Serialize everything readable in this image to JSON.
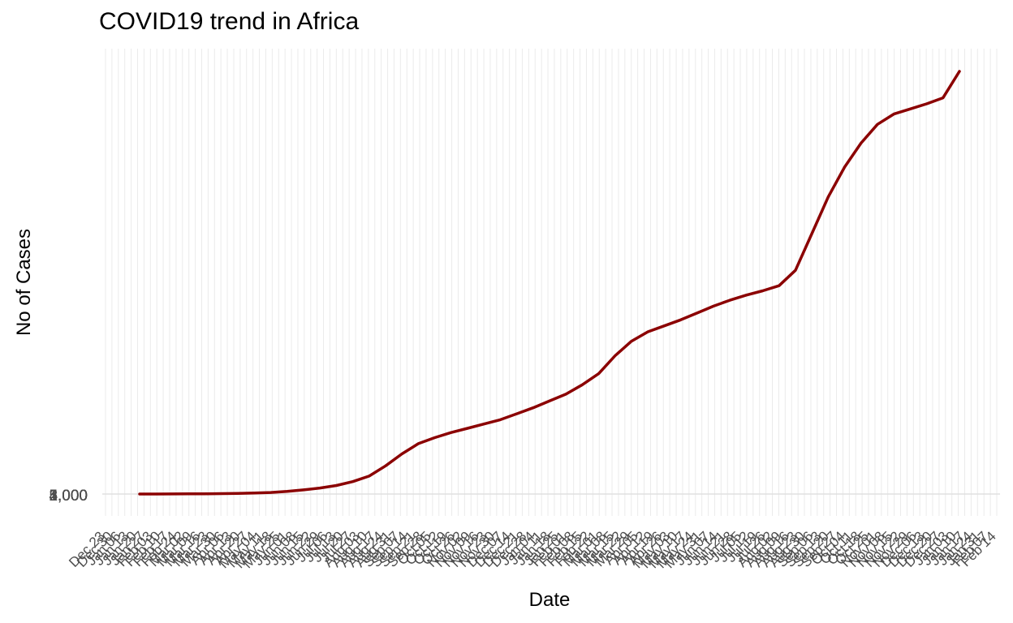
{
  "chart_data": {
    "type": "line",
    "title": "COVID19 trend in Africa",
    "xlabel": "Date",
    "ylabel": "No of Cases",
    "y_tick_labels": [
      "1,000",
      "2,000",
      "3,000",
      "4,000",
      "5,000"
    ],
    "series": [
      {
        "name": "No of Cases",
        "color": "#8b0000",
        "values": [
          0,
          0,
          1,
          2,
          3,
          5,
          8,
          12,
          18,
          30,
          48,
          70,
          100,
          145,
          210,
          330,
          470,
          590,
          660,
          720,
          770,
          820,
          870,
          940,
          1010,
          1090,
          1170,
          1280,
          1410,
          1620,
          1790,
          1900,
          1970,
          2040,
          2120,
          2200,
          2270,
          2330,
          2380,
          2440,
          2620,
          3050,
          3480,
          3830,
          4110,
          4330,
          4450,
          4510,
          4570,
          4640,
          4950
        ]
      }
    ],
    "x_tick_labels": [
      "Dec 23",
      "Dec 30",
      "Jan 06",
      "Jan 13",
      "Jan 20",
      "Jan 27",
      "Feb 03",
      "Feb 10",
      "Feb 17",
      "Feb 24",
      "Mar 02",
      "Mar 09",
      "Mar 16",
      "Mar 23",
      "Mar 30",
      "Apr 06",
      "Apr 13",
      "Apr 20",
      "Apr 27",
      "May 04",
      "May 11",
      "May 18",
      "May 25",
      "Jun 01",
      "Jun 08",
      "Jun 15",
      "Jun 22",
      "Jun 29",
      "Jul 06",
      "Jul 13",
      "Jul 20",
      "Jul 27",
      "Aug 03",
      "Aug 10",
      "Aug 17",
      "Aug 24",
      "Aug 31",
      "Sep 07",
      "Sep 14",
      "Sep 21",
      "Sep 28",
      "Oct 05",
      "Oct 12",
      "Oct 19",
      "Oct 26",
      "Nov 02",
      "Nov 09",
      "Nov 16",
      "Nov 23",
      "Nov 30",
      "Dec 07",
      "Dec 14",
      "Dec 21",
      "Dec 28",
      "Jan 04",
      "Jan 11",
      "Jan 18",
      "Jan 25",
      "Feb 01",
      "Feb 08",
      "Feb 15",
      "Feb 22",
      "Mar 01",
      "Mar 08",
      "Mar 15",
      "Mar 22",
      "Mar 29",
      "Apr 05",
      "Apr 12",
      "Apr 19",
      "Apr 26",
      "May 03",
      "May 10",
      "May 17",
      "May 24",
      "May 31",
      "Jun 07",
      "Jun 14",
      "Jun 21",
      "Jun 28",
      "Jul 05",
      "Jul 12",
      "Jul 19",
      "Jul 26",
      "Aug 02",
      "Aug 09",
      "Aug 16",
      "Aug 23",
      "Aug 30",
      "Sep 06",
      "Sep 13",
      "Sep 20",
      "Sep 27",
      "Oct 04",
      "Oct 11",
      "Oct 18",
      "Oct 25",
      "Nov 01",
      "Nov 08",
      "Nov 15",
      "Nov 22",
      "Nov 29",
      "Dec 06",
      "Dec 13",
      "Dec 20",
      "Dec 27",
      "Jan 03",
      "Jan 10",
      "Jan 17",
      "Jan 24",
      "Jan 31",
      "Feb 07",
      "Feb 14"
    ],
    "grid": true,
    "legend": "none"
  }
}
